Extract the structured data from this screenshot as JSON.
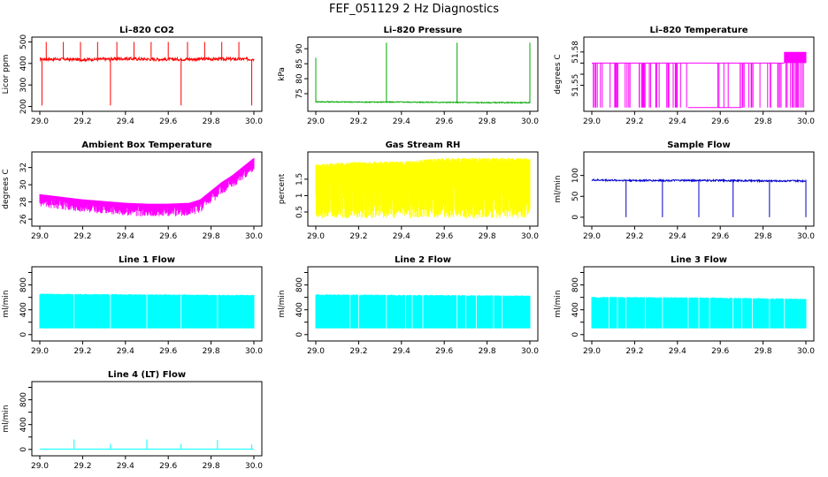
{
  "figure_title": "FEF_051129  2 Hz Diagnostics",
  "chart_data": [
    {
      "type": "line",
      "title": "Li–820 CO2",
      "ylabel": "Licor ppm",
      "color": "#ff0000",
      "xlim": [
        29.0,
        30.0
      ],
      "ylim": [
        190,
        510
      ],
      "yticks": [
        200,
        300,
        400,
        500
      ],
      "xticks": [
        "29.0",
        "29.2",
        "29.4",
        "29.6",
        "29.8",
        "30.0"
      ],
      "series": [
        {
          "name": "CO2",
          "x": [
            29.0,
            29.1,
            29.2,
            29.3,
            29.4,
            29.5,
            29.6,
            29.7,
            29.8,
            29.9,
            30.0
          ],
          "values": [
            420,
            420,
            418,
            420,
            422,
            420,
            419,
            420,
            421,
            420,
            420
          ]
        }
      ]
    },
    {
      "type": "line",
      "title": "Li–820 Pressure",
      "ylabel": "kPa",
      "color": "#00aa00",
      "xlim": [
        29.0,
        30.0
      ],
      "ylim": [
        70,
        93
      ],
      "yticks": [
        75,
        80,
        85,
        90
      ],
      "xticks": [
        "29.0",
        "29.2",
        "29.4",
        "29.6",
        "29.8",
        "30.0"
      ],
      "series": [
        {
          "name": "Pressure",
          "x": [
            29.0,
            29.2,
            29.4,
            29.6,
            29.8,
            30.0
          ],
          "values": [
            72.3,
            72.2,
            72.2,
            72.1,
            72.0,
            72.0
          ]
        }
      ]
    },
    {
      "type": "line",
      "title": "Li–820 Temperature",
      "ylabel": "degrees C",
      "color": "#ff00ff",
      "xlim": [
        29.0,
        30.0
      ],
      "ylim": [
        51.529,
        51.591
      ],
      "yticks": [
        51.55,
        51.58
      ],
      "yticks_minor": [
        51.56,
        51.57
      ],
      "xticks": [
        "29.0",
        "29.2",
        "29.4",
        "29.6",
        "29.8",
        "30.0"
      ],
      "series": [
        {
          "name": "Temperature",
          "x": [
            29.0,
            29.45,
            29.7,
            29.9,
            30.0
          ],
          "values": [
            51.57,
            51.57,
            51.57,
            51.58,
            51.58
          ]
        }
      ]
    },
    {
      "type": "line",
      "title": "Ambient Box Temperature",
      "ylabel": "degrees C",
      "color": "#ff00ff",
      "xlim": [
        29.0,
        30.0
      ],
      "ylim": [
        25.5,
        33.5
      ],
      "yticks": [
        26,
        28,
        30,
        32
      ],
      "xticks": [
        "29.0",
        "29.2",
        "29.4",
        "29.6",
        "29.8",
        "30.0"
      ],
      "series": [
        {
          "name": "Ambient Box Temperature",
          "x": [
            29.0,
            29.1,
            29.2,
            29.3,
            29.4,
            29.5,
            29.6,
            29.7,
            29.75,
            29.8,
            29.85,
            29.9,
            29.95,
            30.0
          ],
          "values": [
            28.6,
            28.3,
            28.0,
            27.8,
            27.6,
            27.5,
            27.5,
            27.6,
            28.0,
            29.0,
            30.0,
            30.8,
            31.8,
            32.8
          ]
        }
      ]
    },
    {
      "type": "line",
      "title": "Gas Stream RH",
      "ylabel": "percent",
      "color": "#ffff00",
      "xlim": [
        29.0,
        30.0
      ],
      "ylim": [
        0.15,
        2.25
      ],
      "yticks": [
        0.5,
        1.0,
        1.5
      ],
      "xticks": [
        "29.0",
        "29.2",
        "29.4",
        "29.6",
        "29.8",
        "30.0"
      ],
      "series": [
        {
          "name": "RH",
          "x": [
            29.0,
            29.2,
            29.4,
            29.6,
            29.8,
            30.0
          ],
          "values": [
            1.8,
            1.9,
            1.9,
            2.0,
            2.0,
            2.0
          ]
        }
      ]
    },
    {
      "type": "line",
      "title": "Sample Flow",
      "ylabel": "ml/min",
      "color": "#0000cc",
      "xlim": [
        29.0,
        30.0
      ],
      "ylim": [
        -15,
        150
      ],
      "yticks": [
        0,
        50,
        100
      ],
      "xticks": [
        "29.0",
        "29.2",
        "29.4",
        "29.6",
        "29.8",
        "30.0"
      ],
      "series": [
        {
          "name": "Sample Flow",
          "x": [
            29.0,
            29.2,
            29.4,
            29.6,
            29.8,
            30.0
          ],
          "values": [
            89,
            88,
            88,
            88,
            87,
            87
          ]
        }
      ]
    },
    {
      "type": "line",
      "title": "Line 1 Flow",
      "ylabel": "ml/min",
      "color": "#00ffff",
      "xlim": [
        29.0,
        30.0
      ],
      "ylim": [
        -60,
        1050
      ],
      "yticks": [
        0,
        400,
        800
      ],
      "yticks_minor": [
        200,
        600,
        1000
      ],
      "xticks": [
        "29.0",
        "29.2",
        "29.4",
        "29.6",
        "29.8",
        "30.0"
      ],
      "series": [
        {
          "name": "Line 1 Flow",
          "x": [
            29.0,
            29.5,
            30.0
          ],
          "values": [
            650,
            640,
            630
          ]
        }
      ]
    },
    {
      "type": "line",
      "title": "Line 2 Flow",
      "ylabel": "ml/min",
      "color": "#00ffff",
      "xlim": [
        29.0,
        30.0
      ],
      "ylim": [
        -60,
        1050
      ],
      "yticks": [
        0,
        400,
        800
      ],
      "yticks_minor": [
        200,
        600,
        1000
      ],
      "xticks": [
        "29.0",
        "29.2",
        "29.4",
        "29.6",
        "29.8",
        "30.0"
      ],
      "series": [
        {
          "name": "Line 2 Flow",
          "x": [
            29.0,
            29.5,
            30.0
          ],
          "values": [
            640,
            630,
            620
          ]
        }
      ]
    },
    {
      "type": "line",
      "title": "Line 3 Flow",
      "ylabel": "ml/min",
      "color": "#00ffff",
      "xlim": [
        29.0,
        30.0
      ],
      "ylim": [
        -60,
        1050
      ],
      "yticks": [
        0,
        400,
        800
      ],
      "yticks_minor": [
        200,
        600,
        1000
      ],
      "xticks": [
        "29.0",
        "29.2",
        "29.4",
        "29.6",
        "29.8",
        "30.0"
      ],
      "series": [
        {
          "name": "Line 3 Flow",
          "x": [
            29.0,
            29.5,
            30.0
          ],
          "values": [
            600,
            590,
            570
          ]
        }
      ]
    },
    {
      "type": "line",
      "title": "Line 4 (LT) Flow",
      "ylabel": "ml/min",
      "color": "#00ffff",
      "xlim": [
        29.0,
        30.0
      ],
      "ylim": [
        -60,
        1050
      ],
      "yticks": [
        0,
        400,
        800
      ],
      "yticks_minor": [
        200,
        600,
        1000
      ],
      "xticks": [
        "29.0",
        "29.2",
        "29.4",
        "29.6",
        "29.8",
        "30.0"
      ],
      "series": [
        {
          "name": "Line 4 (LT) Flow",
          "x": [
            29.0,
            29.16,
            29.33,
            29.5,
            29.66,
            29.83,
            30.0
          ],
          "values": [
            5,
            160,
            90,
            160,
            90,
            150,
            80
          ]
        }
      ]
    }
  ]
}
